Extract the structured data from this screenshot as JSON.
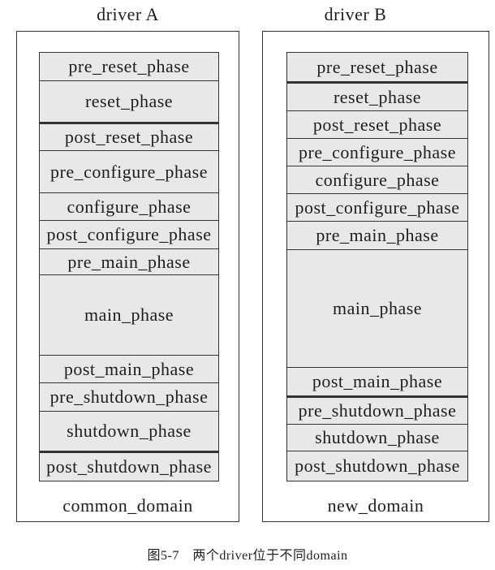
{
  "drivers": [
    {
      "title": "driver A",
      "domain": "common_domain",
      "phases": [
        "pre_reset_phase",
        "reset_phase",
        "post_reset_phase",
        "pre_configure_phase",
        "configure_phase",
        "post_configure_phase",
        "pre_main_phase",
        "main_phase",
        "post_main_phase",
        "pre_shutdown_phase",
        "shutdown_phase",
        "post_shutdown_phase"
      ]
    },
    {
      "title": "driver B",
      "domain": "new_domain",
      "phases": [
        "pre_reset_phase",
        "reset_phase",
        "post_reset_phase",
        "pre_configure_phase",
        "configure_phase",
        "post_configure_phase",
        "pre_main_phase",
        "main_phase",
        "post_main_phase",
        "pre_shutdown_phase",
        "shutdown_phase",
        "post_shutdown_phase"
      ]
    }
  ],
  "caption": "图5-7　两个driver位于不同domain",
  "colors": {
    "line": "#333333",
    "phase_fill": "#e8e8e8"
  }
}
